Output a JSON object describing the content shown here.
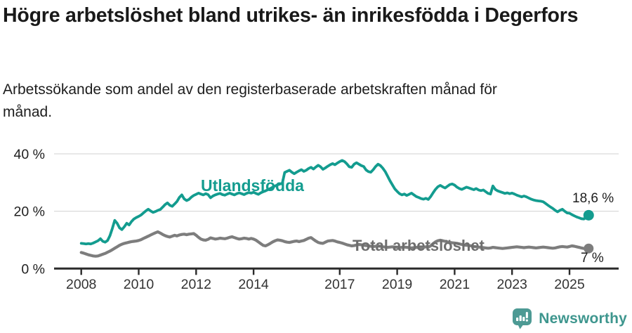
{
  "header": {
    "title": "Högre arbetslöshet bland utrikes- än inrikesfödda i Degerfors",
    "subtitle": "Arbetssökande som andel av den registerbaserade arbetskraften månad för månad."
  },
  "colors": {
    "accent_teal": "#139c8f",
    "line_gray": "#7d7d7d",
    "label_gray": "#6e6e6e",
    "axis": "#2b2b2b",
    "grid": "#dadada",
    "tick_text": "#333333",
    "logo_bubble": "#4d9a94",
    "brand_text": "#3e968e"
  },
  "chart_data": {
    "type": "line",
    "title": "Högre arbetslöshet bland utrikes- än inrikesfödda i Degerfors",
    "xlabel": "",
    "ylabel": "Arbetssökande som andel av den registerbaserade arbetskraften",
    "grid": "horizontal",
    "x_start_year": 2008,
    "points_per_month": 1,
    "x_ticks": [
      2008,
      2010,
      2012,
      2014,
      2017,
      2019,
      2021,
      2023,
      2025
    ],
    "y_ticks": [
      {
        "value": 0,
        "label": "0 %"
      },
      {
        "value": 20,
        "label": "20 %"
      },
      {
        "value": 40,
        "label": "40 %"
      }
    ],
    "ylim": [
      0,
      44
    ],
    "series": [
      {
        "name": "Utlandsfödda",
        "color": "#139c8f",
        "end_label": "18,6 %",
        "end_value": 18.6,
        "values": [
          8.8,
          8.7,
          8.6,
          8.7,
          8.6,
          8.9,
          9.3,
          9.7,
          10.4,
          9.5,
          9.2,
          9.8,
          11.5,
          14.0,
          16.8,
          15.8,
          14.2,
          13.6,
          14.6,
          15.8,
          15.2,
          16.4,
          17.3,
          17.8,
          18.2,
          18.7,
          19.4,
          20.1,
          20.7,
          20.1,
          19.6,
          19.9,
          20.3,
          20.6,
          21.4,
          22.3,
          22.9,
          22.1,
          21.7,
          22.5,
          23.4,
          24.8,
          25.7,
          24.3,
          23.7,
          24.1,
          24.9,
          25.5,
          25.9,
          26.3,
          26.0,
          25.7,
          26.1,
          25.8,
          24.7,
          25.3,
          25.7,
          26.0,
          26.2,
          25.8,
          25.6,
          26.0,
          26.3,
          26.0,
          25.7,
          26.1,
          26.4,
          26.1,
          25.8,
          26.2,
          26.5,
          26.3,
          26.6,
          26.2,
          25.9,
          26.4,
          26.8,
          27.1,
          27.5,
          27.9,
          28.4,
          28.8,
          29.2,
          29.5,
          29.7,
          33.5,
          33.9,
          34.3,
          33.6,
          33.1,
          33.6,
          34.1,
          34.5,
          33.9,
          34.3,
          34.9,
          35.3,
          34.7,
          35.4,
          36.0,
          35.5,
          34.6,
          35.1,
          35.7,
          36.2,
          36.6,
          36.2,
          36.8,
          37.3,
          37.7,
          37.3,
          36.5,
          35.5,
          35.3,
          36.4,
          36.9,
          36.4,
          35.9,
          35.6,
          34.4,
          33.8,
          33.6,
          34.5,
          35.6,
          36.4,
          35.9,
          35.0,
          33.8,
          32.2,
          30.6,
          29.2,
          27.8,
          26.9,
          26.1,
          25.7,
          26.0,
          25.5,
          25.9,
          26.3,
          25.7,
          25.1,
          24.8,
          24.4,
          24.2,
          24.5,
          24.1,
          25.1,
          26.4,
          27.6,
          28.5,
          29.0,
          28.5,
          28.1,
          28.7,
          29.3,
          29.5,
          29.1,
          28.4,
          27.9,
          27.6,
          28.0,
          28.4,
          28.1,
          27.8,
          27.5,
          27.9,
          27.4,
          27.2,
          27.4,
          26.8,
          26.2,
          26.0,
          28.8,
          27.6,
          27.1,
          26.8,
          26.5,
          26.2,
          26.4,
          26.1,
          26.3,
          26.0,
          25.6,
          25.3,
          25.0,
          25.3,
          25.0,
          24.6,
          24.2,
          23.9,
          23.7,
          23.6,
          23.5,
          23.3,
          22.7,
          22.1,
          21.5,
          21.0,
          20.3,
          19.8,
          20.3,
          20.7,
          20.0,
          19.4,
          19.3,
          18.8,
          18.4,
          18.0,
          17.7,
          17.4,
          17.3,
          17.9,
          18.6
        ]
      },
      {
        "name": "Total arbetslöshet",
        "color": "#7d7d7d",
        "end_label": "7 %",
        "end_value": 7.0,
        "values": [
          5.6,
          5.4,
          5.1,
          4.8,
          4.6,
          4.4,
          4.3,
          4.4,
          4.7,
          5.0,
          5.3,
          5.7,
          6.1,
          6.6,
          7.1,
          7.6,
          8.1,
          8.5,
          8.8,
          9.0,
          9.2,
          9.4,
          9.5,
          9.6,
          9.8,
          10.1,
          10.5,
          10.9,
          11.3,
          11.7,
          12.1,
          12.5,
          12.8,
          12.4,
          11.9,
          11.5,
          11.2,
          11.0,
          11.3,
          11.6,
          11.4,
          11.7,
          11.9,
          12.0,
          11.8,
          12.0,
          12.1,
          12.2,
          11.6,
          10.9,
          10.3,
          10.0,
          9.9,
          10.2,
          10.7,
          10.5,
          10.3,
          10.4,
          10.6,
          10.5,
          10.4,
          10.6,
          10.9,
          11.1,
          10.8,
          10.5,
          10.3,
          10.4,
          10.6,
          10.5,
          10.3,
          10.5,
          10.3,
          9.9,
          9.3,
          8.7,
          8.1,
          7.9,
          8.3,
          8.8,
          9.3,
          9.7,
          10.0,
          9.9,
          9.7,
          9.4,
          9.2,
          9.1,
          9.3,
          9.5,
          9.6,
          9.4,
          9.6,
          9.8,
          10.2,
          10.6,
          10.8,
          10.2,
          9.6,
          9.1,
          8.9,
          8.8,
          9.2,
          9.6,
          9.7,
          9.8,
          9.6,
          9.3,
          9.1,
          8.9,
          8.6,
          8.3,
          8.1,
          7.9,
          8.0,
          8.2,
          8.4,
          8.3,
          8.1,
          8.0,
          7.9,
          7.8,
          7.7,
          7.8,
          7.9,
          7.8,
          7.6,
          7.5,
          7.4,
          7.5,
          7.6,
          7.5,
          7.4,
          7.3,
          7.4,
          7.5,
          7.4,
          7.3,
          7.2,
          7.3,
          7.4,
          7.3,
          7.2,
          7.4,
          7.6,
          7.5,
          7.9,
          8.7,
          9.3,
          9.7,
          9.9,
          9.7,
          9.5,
          9.3,
          9.1,
          9.0,
          8.9,
          8.8,
          8.6,
          8.4,
          8.2,
          8.1,
          8.0,
          7.9,
          7.7,
          7.6,
          7.5,
          7.4,
          7.3,
          7.2,
          7.1,
          7.2,
          7.4,
          7.3,
          7.2,
          7.1,
          7.0,
          7.1,
          7.2,
          7.3,
          7.4,
          7.5,
          7.6,
          7.5,
          7.4,
          7.3,
          7.4,
          7.5,
          7.4,
          7.3,
          7.2,
          7.3,
          7.4,
          7.5,
          7.4,
          7.3,
          7.2,
          7.1,
          7.2,
          7.4,
          7.6,
          7.7,
          7.6,
          7.5,
          7.7,
          7.9,
          7.8,
          7.6,
          7.4,
          7.2,
          7.0,
          6.9,
          7.0
        ]
      }
    ]
  },
  "footer": {
    "brand": "Newsworthy",
    "logo_icon": "bar-chart-speech-bubble-icon"
  }
}
